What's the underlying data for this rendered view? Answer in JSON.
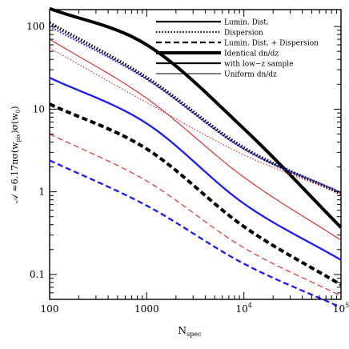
{
  "chart_data": {
    "type": "line",
    "xscale": "log",
    "yscale": "log",
    "xlim": [
      100,
      100000
    ],
    "ylim": [
      0.05,
      160
    ],
    "xlabel": "N",
    "xlabel_sub": "spec",
    "ylabel": "𝒜 ≈6.17πσ(w",
    "ylabel_sub": "piv",
    "ylabel_tail": ")σ(w",
    "ylabel_sub2": "0",
    "ylabel_end": ")",
    "x_ticks": [
      {
        "value": 100,
        "label": "100"
      },
      {
        "value": 1000,
        "label": "1000"
      },
      {
        "value": 10000,
        "label": "10",
        "sup": "4"
      },
      {
        "value": 100000,
        "label": "10",
        "sup": "5"
      }
    ],
    "y_ticks": [
      {
        "value": 0.1,
        "label": "0.1"
      },
      {
        "value": 1,
        "label": "1"
      },
      {
        "value": 10,
        "label": "10"
      },
      {
        "value": 100,
        "label": "100"
      }
    ],
    "grid": false,
    "legend": {
      "position": "top-right",
      "entries": [
        {
          "label": "Lumin. Dist.",
          "dash": "solid",
          "weight": "medium"
        },
        {
          "label": "Dispersion",
          "dash": "dotted",
          "weight": "medium"
        },
        {
          "label": "Lumin. Dist. + Dispersion",
          "dash": "dashed",
          "weight": "medium"
        },
        {
          "label": "Identical dn/dz",
          "dash": "solid",
          "weight": "thick"
        },
        {
          "label": "with low−z sample",
          "dash": "solid",
          "weight": "medium"
        },
        {
          "label": "Uniform dn/dz",
          "dash": "solid",
          "weight": "thin"
        }
      ]
    },
    "colors": {
      "black": "#000000",
      "blue": "#1a1aff",
      "red": "#e02020"
    },
    "series": [
      {
        "color": "black",
        "dash": "solid",
        "weight": "thick",
        "points": [
          [
            100,
            165
          ],
          [
            1000,
            60
          ],
          [
            10000,
            5.8
          ],
          [
            100000,
            0.37
          ]
        ]
      },
      {
        "color": "black",
        "dash": "dotted",
        "weight": "thick",
        "points": [
          [
            100,
            110
          ],
          [
            1000,
            24
          ],
          [
            10000,
            3.4
          ],
          [
            100000,
            0.95
          ]
        ]
      },
      {
        "color": "black",
        "dash": "dashed",
        "weight": "thick",
        "points": [
          [
            100,
            11.5
          ],
          [
            1000,
            3.3
          ],
          [
            10000,
            0.38
          ],
          [
            100000,
            0.075
          ]
        ]
      },
      {
        "color": "blue",
        "dash": "solid",
        "weight": "medium",
        "points": [
          [
            100,
            24
          ],
          [
            1000,
            6.7
          ],
          [
            10000,
            0.72
          ],
          [
            100000,
            0.15
          ]
        ]
      },
      {
        "color": "blue",
        "dash": "dotted",
        "weight": "medium",
        "points": [
          [
            100,
            100
          ],
          [
            1000,
            23
          ],
          [
            10000,
            3.3
          ],
          [
            100000,
            0.98
          ]
        ]
      },
      {
        "color": "blue",
        "dash": "dashed",
        "weight": "medium",
        "points": [
          [
            100,
            2.4
          ],
          [
            1000,
            0.68
          ],
          [
            10000,
            0.135
          ],
          [
            100000,
            0.04
          ]
        ]
      },
      {
        "color": "red",
        "dash": "solid",
        "weight": "thin",
        "points": [
          [
            100,
            70
          ],
          [
            1000,
            13.5
          ],
          [
            10000,
            1.5
          ],
          [
            100000,
            0.26
          ]
        ]
      },
      {
        "color": "red",
        "dash": "dotted",
        "weight": "thin",
        "points": [
          [
            100,
            55
          ],
          [
            1000,
            12
          ],
          [
            10000,
            2.8
          ],
          [
            100000,
            0.95
          ]
        ]
      },
      {
        "color": "red",
        "dash": "dashed",
        "weight": "thin",
        "points": [
          [
            100,
            5
          ],
          [
            1000,
            1.35
          ],
          [
            10000,
            0.21
          ],
          [
            100000,
            0.055
          ]
        ]
      }
    ]
  }
}
